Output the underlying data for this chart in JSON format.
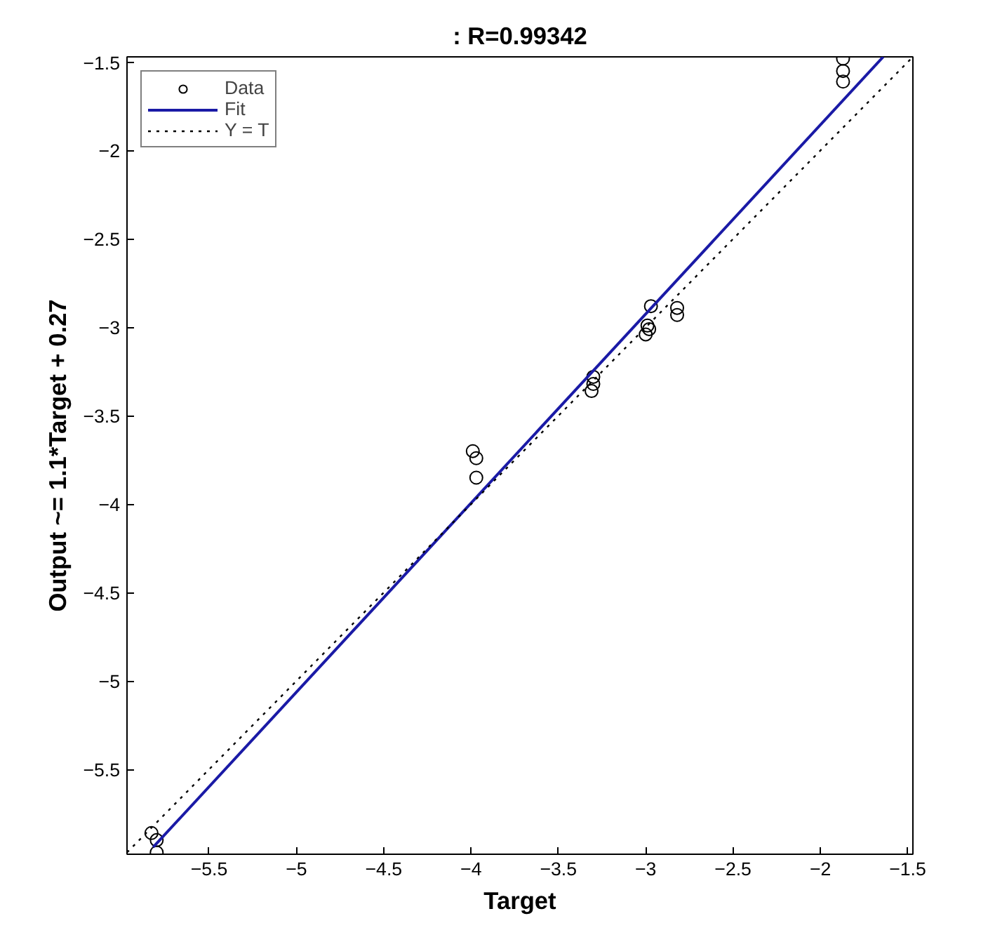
{
  "chart_data": {
    "type": "scatter",
    "title": ": R=0.99342",
    "xlabel": "Target",
    "ylabel": "Output ~= 1.1*Target + 0.27",
    "xlim": [
      -5.97,
      -1.47
    ],
    "ylim": [
      -5.98,
      -1.47
    ],
    "xticks": [
      -5.5,
      -5,
      -4.5,
      -4,
      -3.5,
      -3,
      -2.5,
      -2,
      -1.5
    ],
    "yticks": [
      -5.5,
      -5,
      -4.5,
      -4,
      -3.5,
      -3,
      -2.5,
      -2,
      -1.5
    ],
    "grid": false,
    "legend": "top left",
    "series": [
      {
        "name": "Data",
        "marker": "circle",
        "color": "#000000",
        "x": [
          -1.87,
          -1.87,
          -1.87,
          -2.97,
          -2.99,
          -3.0,
          -2.98,
          -2.82,
          -2.82,
          -3.3,
          -3.3,
          -3.31,
          -3.99,
          -3.97,
          -3.97,
          -5.83,
          -5.8,
          -5.8
        ],
        "values": [
          -1.48,
          -1.55,
          -1.61,
          -2.88,
          -2.99,
          -3.04,
          -3.01,
          -2.89,
          -2.93,
          -3.28,
          -3.32,
          -3.36,
          -3.7,
          -3.74,
          -3.85,
          -5.86,
          -5.9,
          -5.97
        ]
      },
      {
        "name": "Fit",
        "type": "line",
        "line_style": "solid",
        "color": "#1a1aa6",
        "x": [
          -5.82,
          -1.64
        ],
        "values": [
          -5.94,
          -1.47
        ]
      },
      {
        "name": "Y = T",
        "type": "line",
        "line_style": "dotted",
        "color": "#000000",
        "x": [
          -5.97,
          -1.47
        ],
        "values": [
          -5.97,
          -1.47
        ]
      }
    ]
  }
}
